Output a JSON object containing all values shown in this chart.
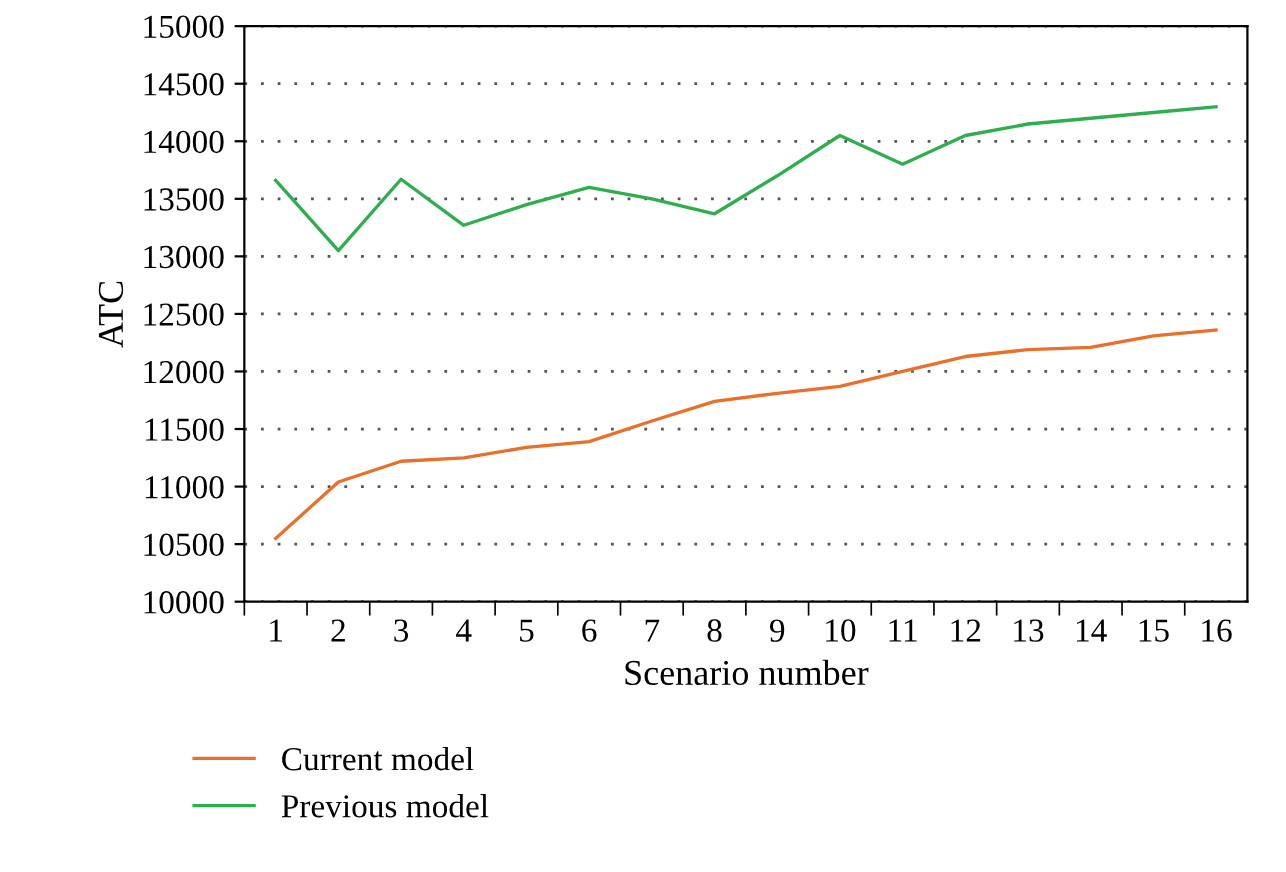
{
  "chart_data": {
    "type": "line",
    "xlabel": "Scenario number",
    "ylabel": "ATC",
    "categories": [
      "1",
      "2",
      "3",
      "4",
      "5",
      "6",
      "7",
      "8",
      "9",
      "10",
      "11",
      "12",
      "13",
      "14",
      "15",
      "16"
    ],
    "series": [
      {
        "name": "Current model",
        "color": "#e8702a",
        "values": [
          10550,
          11040,
          11220,
          11250,
          11340,
          11390,
          11570,
          11740,
          11810,
          11870,
          12000,
          12130,
          12190,
          12210,
          12310,
          12360
        ]
      },
      {
        "name": "Previous model",
        "color": "#2fae4f",
        "values": [
          13660,
          13050,
          13670,
          13270,
          13450,
          13600,
          13500,
          13370,
          13700,
          14050,
          13800,
          14050,
          14150,
          14200,
          14250,
          14300
        ]
      }
    ],
    "ylim": [
      10000,
      15000
    ],
    "yticks": [
      10000,
      10500,
      11000,
      11500,
      12000,
      12500,
      13000,
      13500,
      14000,
      14500,
      15000
    ],
    "grid": "y",
    "legend": "bottom left",
    "marker": "none",
    "line_style": "solid"
  }
}
